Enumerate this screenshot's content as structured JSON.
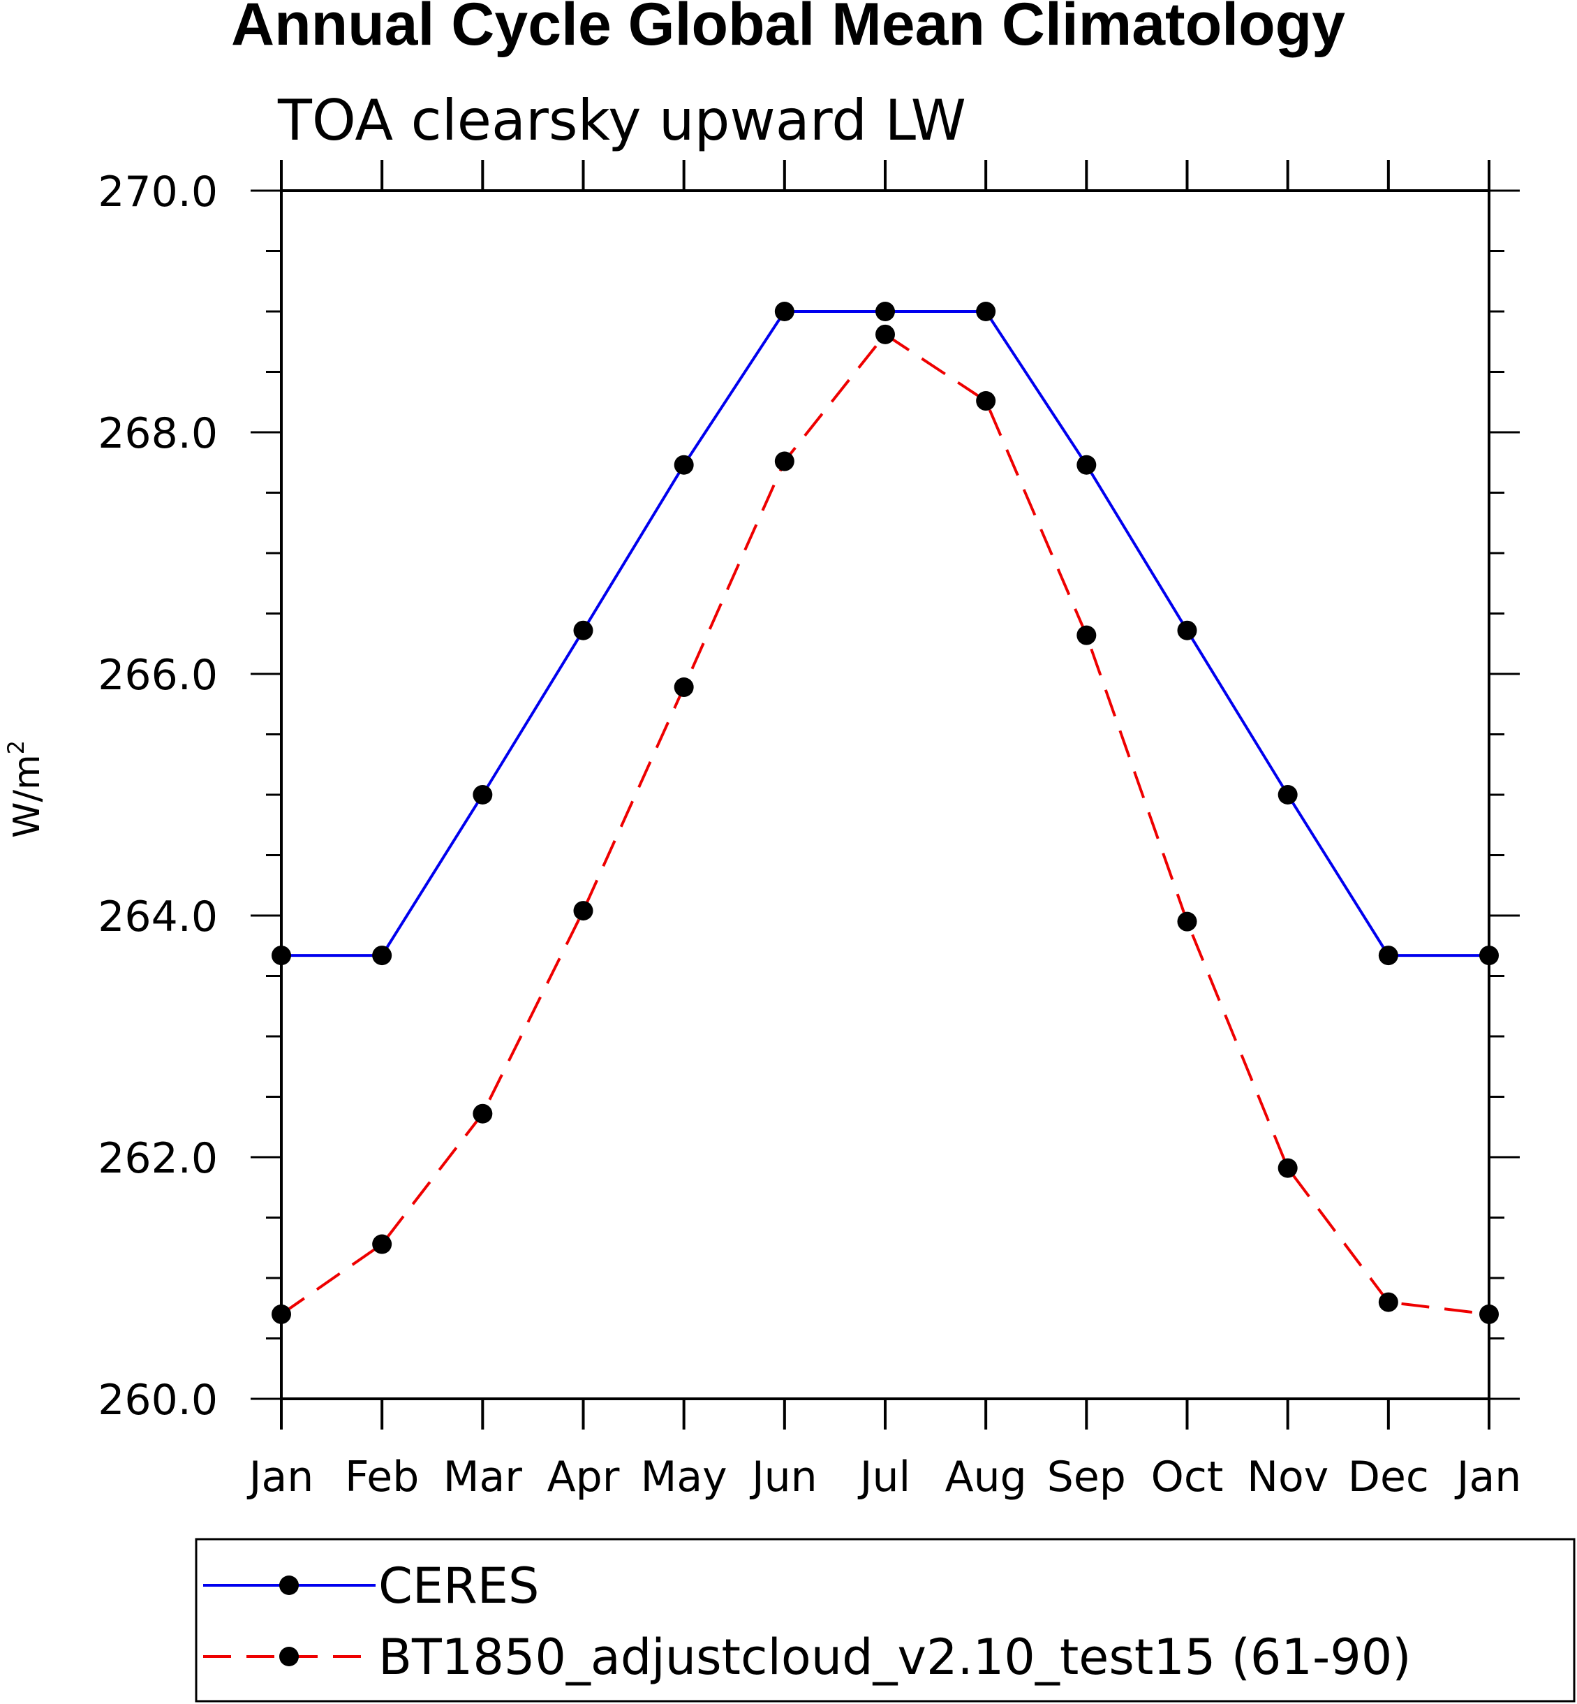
{
  "chart_data": {
    "type": "line",
    "title": "Annual Cycle Global Mean Climatology",
    "subtitle": "TOA clearsky upward LW",
    "ylabel": "W/m",
    "ylabel_superscript": "2",
    "xlabel": "",
    "categories": [
      "Jan",
      "Feb",
      "Mar",
      "Apr",
      "May",
      "Jun",
      "Jul",
      "Aug",
      "Sep",
      "Oct",
      "Nov",
      "Dec",
      "Jan"
    ],
    "yticks": [
      "260.0",
      "262.0",
      "264.0",
      "266.0",
      "268.0",
      "270.0"
    ],
    "ylim": [
      260,
      270
    ],
    "grid": false,
    "legend_position": "bottom",
    "series": [
      {
        "name": "CERES",
        "color": "#0000ee",
        "linestyle": "solid",
        "marker": "filled-circle",
        "values": [
          263.67,
          263.67,
          265.0,
          266.36,
          267.73,
          269.0,
          269.0,
          269.0,
          267.73,
          266.36,
          265.0,
          263.67,
          263.67
        ]
      },
      {
        "name": "BT1850_adjustcloud_v2.10_test15 (61-90)",
        "color": "#ee0000",
        "linestyle": "dashed",
        "marker": "filled-circle",
        "values": [
          260.7,
          261.28,
          262.36,
          264.04,
          265.89,
          267.76,
          268.81,
          268.26,
          266.32,
          263.95,
          261.91,
          260.8,
          260.7
        ]
      }
    ]
  }
}
